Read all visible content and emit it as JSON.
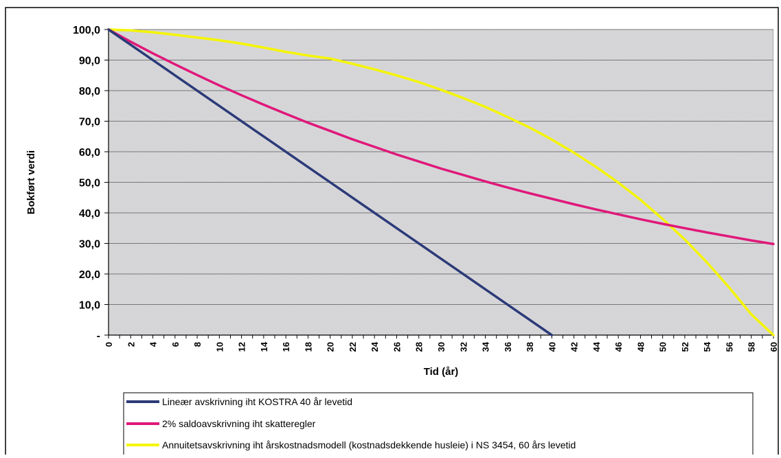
{
  "chart_data": {
    "type": "line",
    "title": "",
    "xlabel": "Tid (år)",
    "ylabel": "Bokført verdi",
    "xlim": [
      0,
      60
    ],
    "ylim": [
      0,
      100
    ],
    "x_ticks": [
      "0",
      "2",
      "4",
      "6",
      "8",
      "10",
      "12",
      "14",
      "16",
      "18",
      "20",
      "22",
      "24",
      "26",
      "28",
      "30",
      "32",
      "34",
      "36",
      "38",
      "40",
      "42",
      "44",
      "46",
      "48",
      "50",
      "52",
      "54",
      "56",
      "58",
      "60"
    ],
    "y_ticks": [
      "100,0",
      "90,0",
      "80,0",
      "70,0",
      "60,0",
      "50,0",
      "40,0",
      "30,0",
      "20,0",
      "10,0",
      "-"
    ],
    "y_tick_values": [
      100,
      90,
      80,
      70,
      60,
      50,
      40,
      30,
      20,
      10,
      0
    ],
    "grid": "horizontal",
    "legend_position": "bottom",
    "colors": {
      "plot_background": "#d9d9dc",
      "grid": "#777777",
      "linear": "#2b3a78",
      "saldo": "#e0187a",
      "annuity": "#f5f500"
    },
    "series": [
      {
        "name": "Lineær avskrivning iht KOSTRA 40 år levetid",
        "color": "#2b3a78",
        "x": [
          0,
          40
        ],
        "values": [
          100,
          0
        ]
      },
      {
        "name": "2% saldoavskrivning iht skatteregler",
        "color": "#e0187a",
        "x": [
          0,
          2,
          4,
          6,
          8,
          10,
          12,
          14,
          16,
          18,
          20,
          22,
          24,
          26,
          28,
          30,
          32,
          34,
          36,
          38,
          40,
          42,
          44,
          46,
          48,
          50,
          52,
          54,
          56,
          58,
          60
        ],
        "values": [
          100,
          96.0,
          92.2,
          88.6,
          85.1,
          81.7,
          78.5,
          75.4,
          72.4,
          69.5,
          66.8,
          64.1,
          61.6,
          59.1,
          56.8,
          54.5,
          52.4,
          50.3,
          48.3,
          46.4,
          44.6,
          42.8,
          41.1,
          39.5,
          37.9,
          36.4,
          35.0,
          33.6,
          32.3,
          31.0,
          29.8
        ]
      },
      {
        "name": "Annuitetsavskrivning iht årskostnadsmodell (kostnadsdekkende husleie) i NS 3454, 60 års levetid",
        "color": "#f5f500",
        "x": [
          0,
          2,
          4,
          6,
          8,
          10,
          12,
          14,
          16,
          18,
          20,
          22,
          24,
          26,
          28,
          30,
          32,
          34,
          36,
          38,
          40,
          42,
          44,
          46,
          48,
          50,
          52,
          54,
          56,
          58,
          60
        ],
        "values": [
          100,
          99.7,
          99.1,
          98.3,
          97.4,
          96.5,
          95.4,
          94.1,
          92.7,
          91.5,
          90.5,
          88.8,
          87.0,
          85.0,
          82.8,
          80.3,
          77.6,
          74.7,
          71.4,
          67.9,
          64.0,
          59.7,
          55.0,
          49.9,
          44.3,
          38.0,
          31.3,
          23.8,
          15.6,
          6.8,
          0
        ]
      }
    ]
  }
}
